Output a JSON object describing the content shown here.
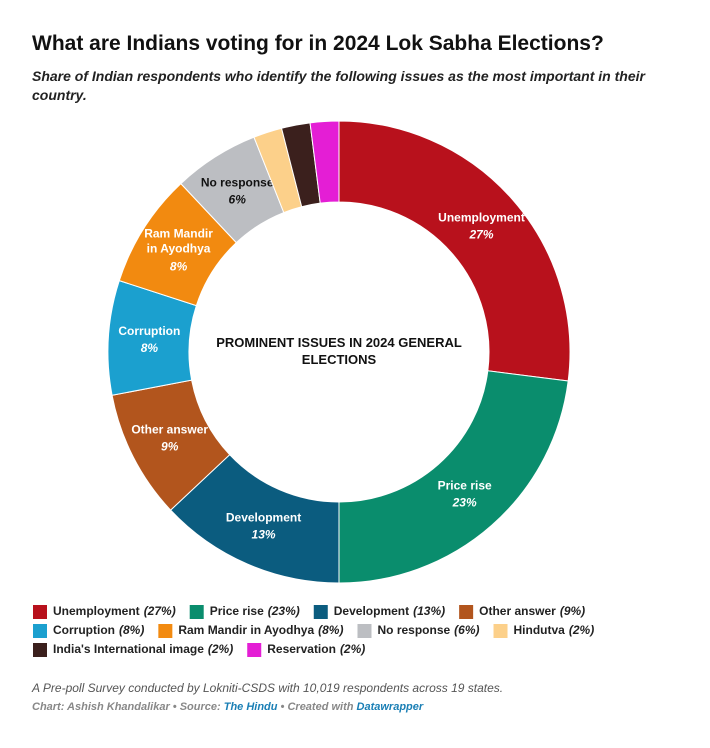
{
  "chart_data": {
    "type": "pie",
    "title": "What are Indians voting for in 2024 Lok Sabha Elections?",
    "subtitle": "Share of Indian respondents who identify the following issues as the most important in their country.",
    "center_label": "PROMINENT ISSUES IN 2024 GENERAL ELECTIONS",
    "categories": [
      "Unemployment",
      "Price rise",
      "Development",
      "Other answer",
      "Corruption",
      "Ram Mandir in Ayodhya",
      "No response",
      "Hindutva",
      "India's International image",
      "Reservation"
    ],
    "values": [
      27,
      23,
      13,
      9,
      8,
      8,
      6,
      2,
      2,
      2
    ],
    "value_labels": [
      "27%",
      "23%",
      "13%",
      "9%",
      "8%",
      "8%",
      "6%",
      null,
      null,
      null
    ],
    "legend_labels": [
      "(27%)",
      "(23%)",
      "(13%)",
      "(9%)",
      "(8%)",
      "(8%)",
      "(6%)",
      "(2%)",
      "(2%)",
      "(2%)"
    ],
    "colors": [
      "#b8111c",
      "#0a8d6d",
      "#0b5c7f",
      "#b2551d",
      "#1ba0cf",
      "#f28a10",
      "#bcbec2",
      "#fcd08a",
      "#3b201d",
      "#e41ed5"
    ],
    "note": "A Pre-poll Survey conducted by Lokniti-CSDS with 10,019 respondents across 19 states.",
    "credits": [
      "Chart: Ashish Khandalikar • Source: ",
      "The Hindu",
      " • Created with ",
      "Datawrapper"
    ]
  }
}
